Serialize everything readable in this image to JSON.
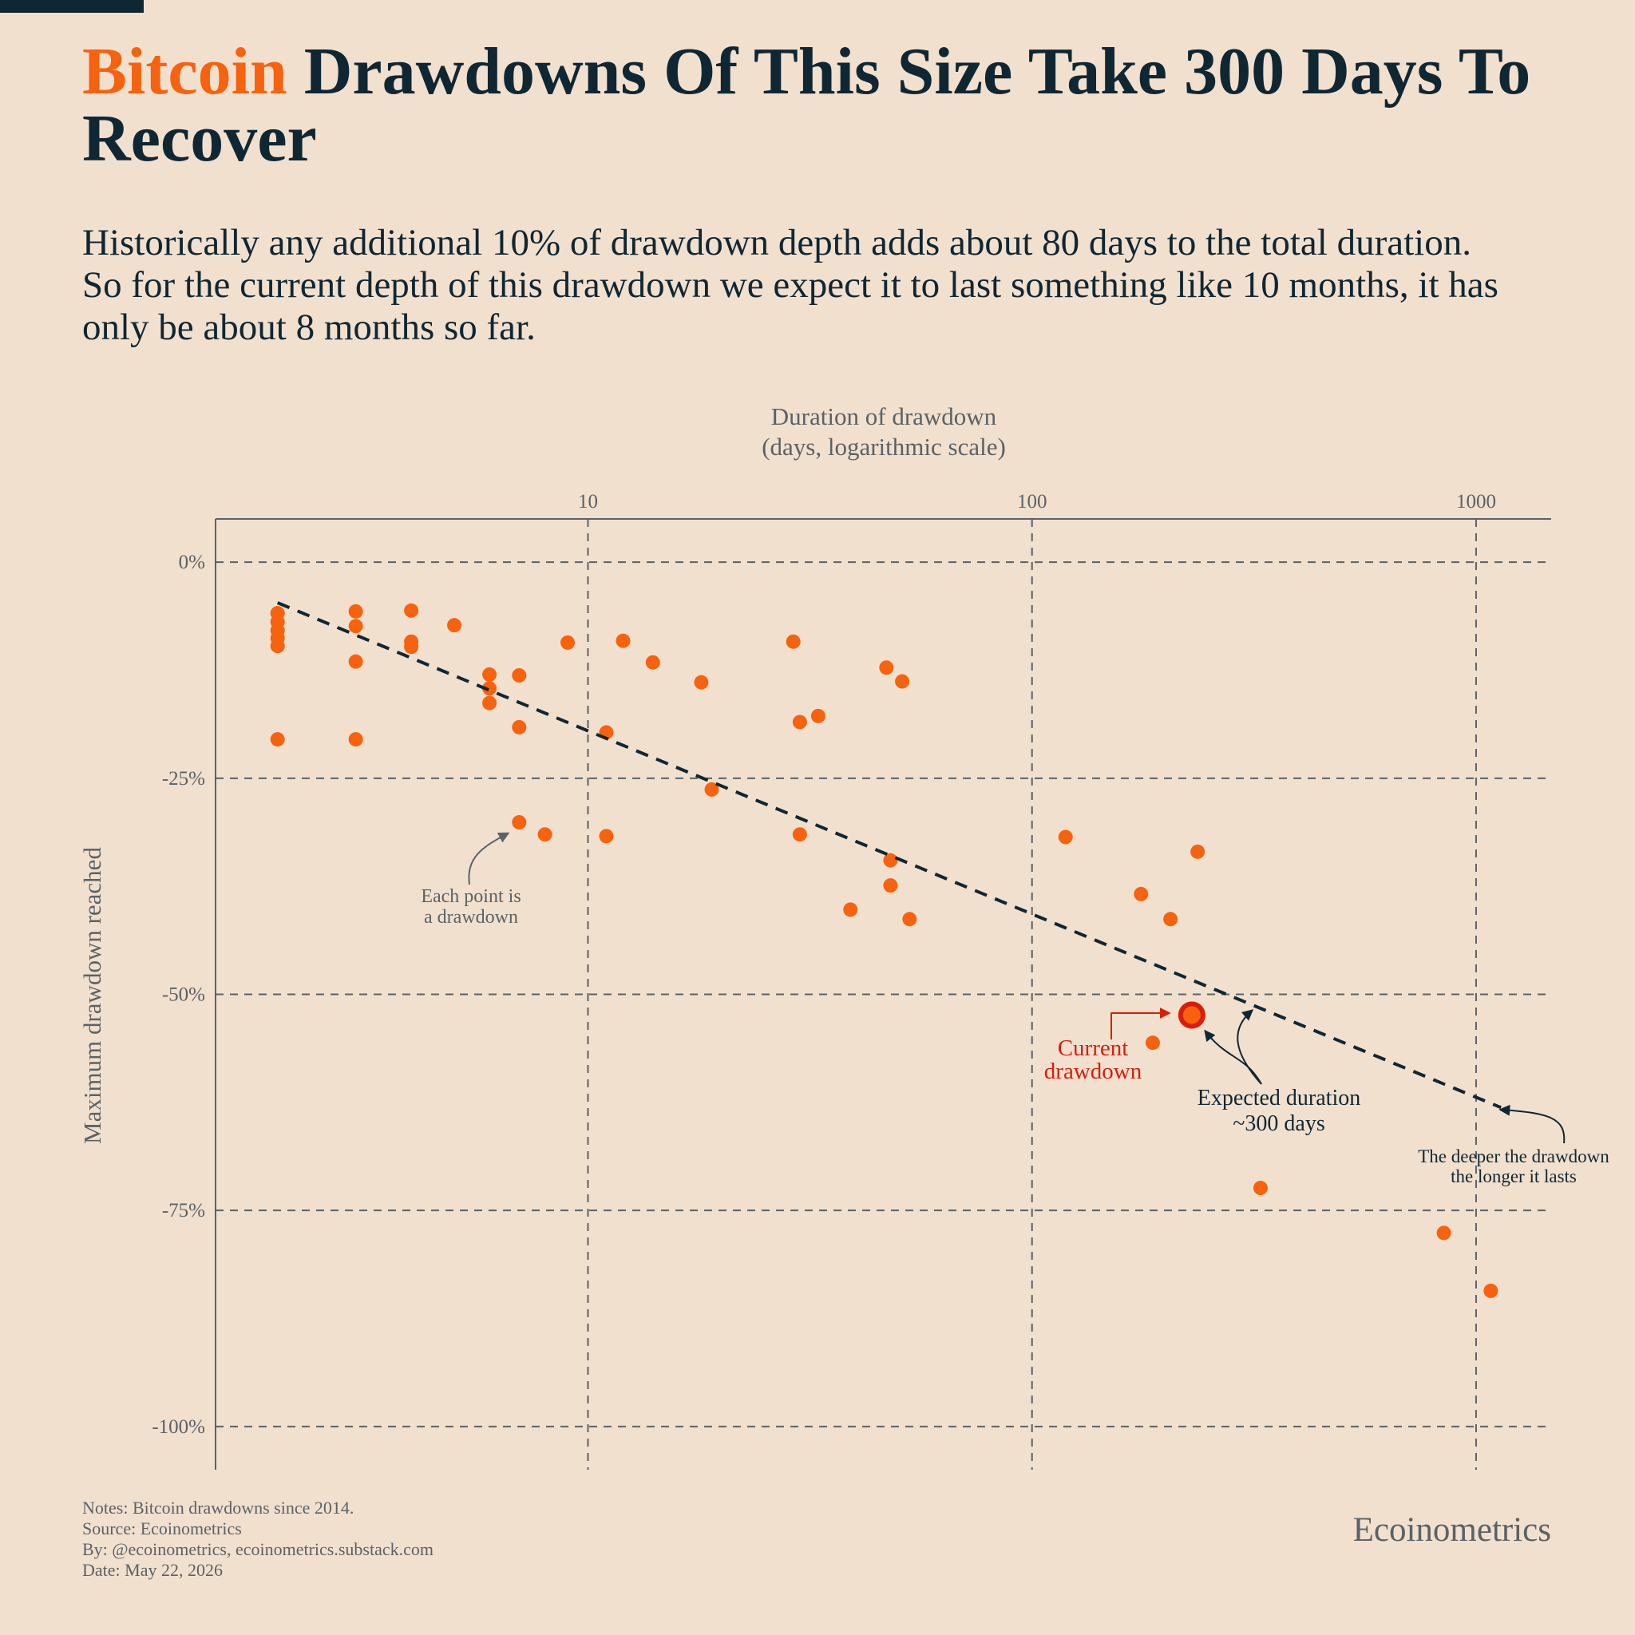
{
  "chart_data": {
    "type": "scatter",
    "title_highlight": "Bitcoin",
    "title": "Drawdowns Of This Size Take 300 Days To Recover",
    "subtitle": "Historically any additional 10% of drawdown depth adds about 80 days to the total duration. So for the current depth of this drawdown we expect it to last something like 10 months, it has only be about 8 months so far.",
    "x_label": [
      "Duration of drawdown",
      "(days, logarithmic scale)"
    ],
    "y_label": "Maximum drawdown reached",
    "xscale": "log",
    "xlim": [
      1.45,
      1476
    ],
    "xticks": [
      10,
      100,
      1000
    ],
    "ylim": [
      -105,
      5
    ],
    "yticks": [
      {
        "value": 0,
        "label": "0%"
      },
      {
        "value": -25,
        "label": "-25%"
      },
      {
        "value": -50,
        "label": "-50%"
      },
      {
        "value": -75,
        "label": "-75%"
      },
      {
        "value": -100,
        "label": "-100%"
      }
    ],
    "grid": true,
    "series": [
      {
        "type": "scatter",
        "color": "#f7620f",
        "x": [
          2,
          2,
          2,
          2,
          2,
          2,
          3,
          3,
          3,
          3,
          4,
          4,
          4,
          5,
          6,
          6,
          6,
          7,
          7,
          7,
          8,
          9,
          11,
          11,
          12,
          14,
          18,
          19,
          29,
          30,
          30,
          33,
          39,
          47,
          48,
          48,
          51,
          53,
          119,
          176,
          187,
          205,
          236,
          327,
          846,
          1079
        ],
        "values": [
          -5.9,
          -6.9,
          -7.9,
          -8.8,
          -9.7,
          -20.5,
          -5.7,
          -7.4,
          -11.5,
          -20.5,
          -5.6,
          -9.2,
          -9.8,
          -7.3,
          -13.0,
          -14.6,
          -16.3,
          -13.1,
          -19.1,
          -30.1,
          -31.5,
          -9.3,
          -19.7,
          -31.7,
          -9.1,
          -11.6,
          -13.9,
          -26.3,
          -9.2,
          -18.5,
          -31.5,
          -17.8,
          -40.2,
          -12.2,
          -34.5,
          -37.4,
          -13.8,
          -41.3,
          -31.8,
          -38.4,
          -55.6,
          -41.3,
          -33.5,
          -72.4,
          -77.6,
          -84.3
        ]
      },
      {
        "type": "line",
        "color": "#0f2733",
        "x": [
          2,
          1138
        ],
        "values": [
          -4.7,
          -63.1
        ]
      },
      {
        "type": "highlight",
        "color": "#d81e0b",
        "fill": "#f7620f",
        "x": [
          229
        ],
        "values": [
          -52.4
        ]
      }
    ],
    "annotations": [
      {
        "text": [
          "Each point is",
          "a drawdown"
        ],
        "color": "#5a6266"
      },
      {
        "text": [
          "Current",
          "drawdown"
        ],
        "color": "#d81e0b"
      },
      {
        "text": [
          "Expected duration",
          "~300 days"
        ],
        "color": "#0f2733"
      },
      {
        "text": [
          "The deeper the drawdown",
          "the longer it lasts"
        ],
        "color": "#0f2733"
      }
    ],
    "notes": [
      "Notes: Bitcoin drawdowns since 2014.",
      "Source: Ecoinometrics",
      "By: @ecoinometrics, ecoinometrics.substack.com",
      "Date: May 22, 2026"
    ],
    "brand": "Ecoinometrics"
  }
}
